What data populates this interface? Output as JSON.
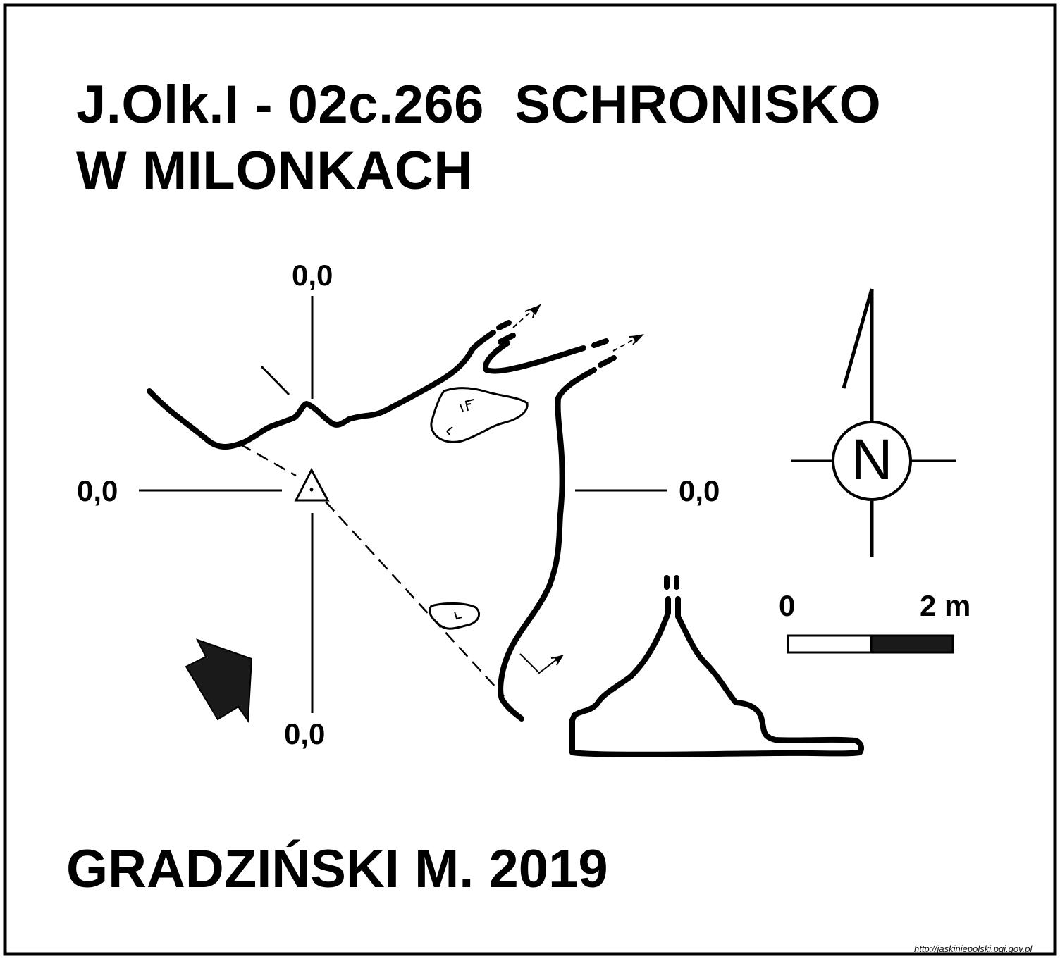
{
  "map": {
    "title_line1": "J.Olk.I - 02c.266  SCHRONISKO",
    "title_line2": "W MILONKACH",
    "author": "GRADZIŃSKI M. 2019"
  },
  "datum_labels": {
    "top": "0,0",
    "left": "0,0",
    "right": "0,0",
    "bottom": "0,0"
  },
  "north_arrow": {
    "letter": "N",
    "icon": "compass-north-icon"
  },
  "scale_bar": {
    "start_label": "0",
    "end_label": "2 m"
  },
  "source_credit": "http://jaskiniepolski.pgi.gov.pl",
  "colors": {
    "ink": "#000000",
    "paper": "#ffffff",
    "fill": "#1a1a1a"
  }
}
